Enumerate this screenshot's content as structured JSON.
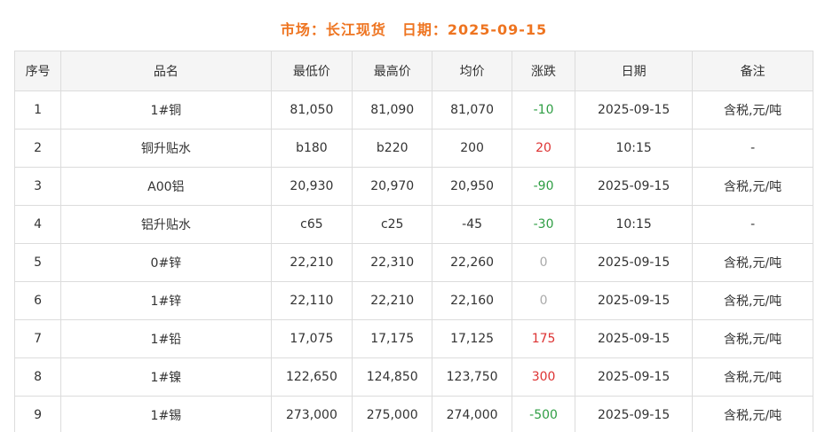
{
  "header": {
    "market_label": "市场：长江现货",
    "date_label": "日期：2025-09-15",
    "color": "#ee7420"
  },
  "table": {
    "columns": [
      "序号",
      "品名",
      "最低价",
      "最高价",
      "均价",
      "涨跌",
      "日期",
      "备注"
    ],
    "rows": [
      {
        "seq": "1",
        "name": "1#铜",
        "low": "81,050",
        "high": "81,090",
        "avg": "81,070",
        "change": "-10",
        "change_dir": "down",
        "date": "2025-09-15",
        "note": "含税,元/吨"
      },
      {
        "seq": "2",
        "name": "铜升贴水",
        "low": "b180",
        "high": "b220",
        "avg": "200",
        "change": "20",
        "change_dir": "up",
        "date": "10:15",
        "note": "-"
      },
      {
        "seq": "3",
        "name": "A00铝",
        "low": "20,930",
        "high": "20,970",
        "avg": "20,950",
        "change": "-90",
        "change_dir": "down",
        "date": "2025-09-15",
        "note": "含税,元/吨"
      },
      {
        "seq": "4",
        "name": "铝升贴水",
        "low": "c65",
        "high": "c25",
        "avg": "-45",
        "change": "-30",
        "change_dir": "down",
        "date": "10:15",
        "note": "-"
      },
      {
        "seq": "5",
        "name": "0#锌",
        "low": "22,210",
        "high": "22,310",
        "avg": "22,260",
        "change": "0",
        "change_dir": "flat",
        "date": "2025-09-15",
        "note": "含税,元/吨"
      },
      {
        "seq": "6",
        "name": "1#锌",
        "low": "22,110",
        "high": "22,210",
        "avg": "22,160",
        "change": "0",
        "change_dir": "flat",
        "date": "2025-09-15",
        "note": "含税,元/吨"
      },
      {
        "seq": "7",
        "name": "1#铅",
        "low": "17,075",
        "high": "17,175",
        "avg": "17,125",
        "change": "175",
        "change_dir": "up",
        "date": "2025-09-15",
        "note": "含税,元/吨"
      },
      {
        "seq": "8",
        "name": "1#镍",
        "low": "122,650",
        "high": "124,850",
        "avg": "123,750",
        "change": "300",
        "change_dir": "up",
        "date": "2025-09-15",
        "note": "含税,元/吨"
      },
      {
        "seq": "9",
        "name": "1#锡",
        "low": "273,000",
        "high": "275,000",
        "avg": "274,000",
        "change": "-500",
        "change_dir": "down",
        "date": "2025-09-15",
        "note": "含税,元/吨"
      }
    ]
  },
  "colors": {
    "up": "#dd3333",
    "down": "#2f9e44",
    "flat": "#aaaaaa",
    "border": "#dcdcdc",
    "header_bg": "#f5f5f5",
    "title": "#ee7420",
    "text": "#333333"
  }
}
